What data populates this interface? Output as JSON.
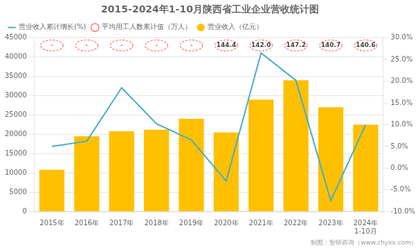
{
  "chart_data": {
    "type": "bar",
    "title": "2015-2024年1-10月陕西省工业企业营收统计图",
    "categories": [
      "2015年",
      "2016年",
      "2017年",
      "2018年",
      "2019年",
      "2020年",
      "2021年",
      "2022年",
      "2023年",
      "2024年\n1-10月"
    ],
    "series": [
      {
        "name": "营业收入（亿元）",
        "type": "bar",
        "color": "#FFC000",
        "values": [
          10800,
          19500,
          20800,
          21200,
          24000,
          20500,
          29000,
          34000,
          27000,
          22500
        ]
      },
      {
        "name": "平均用工人数累计值（万人）",
        "type": "text",
        "color": "#FF6666",
        "marker": "circle",
        "line_style": "dashed",
        "data_labels": true,
        "values": [
          null,
          null,
          null,
          null,
          null,
          144.4,
          142.0,
          147.2,
          140.7,
          140.6
        ],
        "value_labels": [
          "-",
          "-",
          "-",
          "-",
          "-",
          "144.4",
          "142.0",
          "147.2",
          "140.7",
          "140.6"
        ]
      },
      {
        "name": "营业收入累计增长(%)",
        "type": "line",
        "axis": "y2",
        "color": "#4BACC6",
        "values": [
          5.0,
          6.2,
          18.5,
          10.2,
          6.5,
          -3.0,
          26.5,
          20.2,
          -7.5,
          10.0
        ]
      }
    ],
    "ylim": [
      0,
      45000
    ],
    "yticks": [
      0,
      5000,
      10000,
      15000,
      20000,
      25000,
      30000,
      35000,
      40000,
      45000
    ],
    "y2lim": [
      -10.0,
      30.0
    ],
    "y2ticks": [
      {
        "value": -10.0,
        "label": "-10.0%"
      },
      {
        "value": -5.0,
        "label": "-5.0%"
      },
      {
        "value": 0.0,
        "label": "0.0%"
      },
      {
        "value": 5.0,
        "label": "5.0%"
      },
      {
        "value": 10.0,
        "label": "10.0%"
      },
      {
        "value": 15.0,
        "label": "15.0%"
      },
      {
        "value": 20.0,
        "label": "20.0%"
      },
      {
        "value": 25.0,
        "label": "25.0%"
      },
      {
        "value": 30.0,
        "label": "30.0%"
      }
    ],
    "grid": true,
    "legend": "top",
    "annotations": [
      "制图：智研咨询（www.chyxx.com）"
    ]
  }
}
